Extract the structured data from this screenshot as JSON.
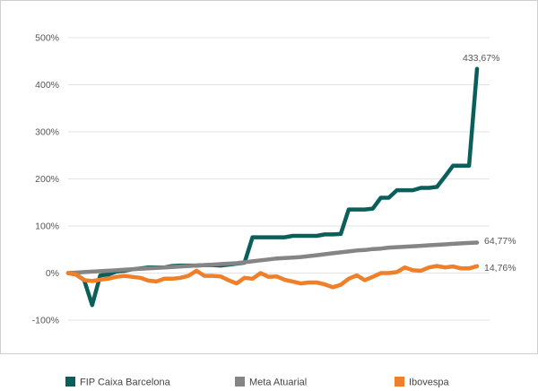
{
  "chart_data": {
    "type": "line",
    "title": "",
    "xlabel": "",
    "ylabel": "",
    "ylim": [
      -100,
      500
    ],
    "y_ticks": [
      -100,
      0,
      100,
      200,
      300,
      400,
      500
    ],
    "y_tick_labels": [
      "-100%",
      "0%",
      "100%",
      "200%",
      "300%",
      "400%",
      "500%"
    ],
    "grid": "horizontal",
    "legend_position": "bottom",
    "series": [
      {
        "name": "FIP Caixa Barcelona",
        "color": "#0b5f5a",
        "end_label": "433,67%",
        "values": [
          0,
          -3,
          -15,
          -68,
          -5,
          -3,
          3,
          5,
          8,
          10,
          12,
          12,
          12,
          15,
          16,
          16,
          16,
          17,
          17,
          16,
          18,
          20,
          22,
          76,
          76,
          76,
          76,
          76,
          79,
          79,
          79,
          79,
          82,
          82,
          83,
          135,
          135,
          135,
          137,
          160,
          160,
          176,
          176,
          176,
          181,
          181,
          183,
          205,
          228,
          228,
          228,
          433.67
        ]
      },
      {
        "name": "Meta Atuarial",
        "color": "#858585",
        "end_label": "64,77%",
        "values": [
          0,
          1,
          2,
          3,
          4,
          5,
          6,
          7,
          8,
          9,
          10,
          11,
          12,
          13,
          14,
          15,
          16,
          17,
          18,
          19,
          20,
          21,
          23,
          25,
          27,
          29,
          31,
          32,
          33,
          34,
          36,
          38,
          40,
          42,
          44,
          46,
          48,
          49,
          51,
          52,
          54,
          55,
          56,
          57,
          58,
          59,
          60,
          61,
          62,
          63,
          64,
          64.77
        ]
      },
      {
        "name": "Ibovespa",
        "color": "#f07f29",
        "end_label": "14,76%",
        "values": [
          0,
          -3,
          -15,
          -17,
          -14,
          -12,
          -8,
          -6,
          -8,
          -10,
          -16,
          -18,
          -12,
          -12,
          -10,
          -6,
          5,
          -6,
          -6,
          -7,
          -15,
          -22,
          -10,
          -12,
          0,
          -8,
          -7,
          -14,
          -18,
          -22,
          -20,
          -20,
          -24,
          -30,
          -25,
          -12,
          -5,
          -15,
          -8,
          0,
          0,
          2,
          12,
          6,
          5,
          12,
          15,
          12,
          14,
          10,
          10,
          14.76
        ]
      }
    ]
  }
}
